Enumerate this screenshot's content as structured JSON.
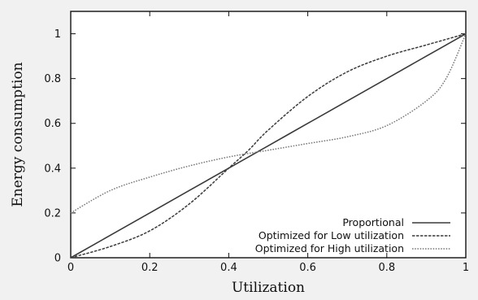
{
  "chart_data": {
    "type": "line",
    "xlabel": "Utilization",
    "ylabel": "Energy consumption",
    "xlim": [
      0,
      1
    ],
    "ylim": [
      0,
      1.1
    ],
    "x_ticks": [
      0,
      0.2,
      0.4,
      0.6,
      0.8,
      1
    ],
    "x_tick_labels": [
      "0",
      "0.2",
      "0.4",
      "0.6",
      "0.8",
      "1"
    ],
    "y_ticks": [
      0,
      0.2,
      0.4,
      0.6,
      0.8,
      1
    ],
    "y_tick_labels": [
      "0",
      "0.2",
      "0.4",
      "0.6",
      "0.8",
      "1"
    ],
    "grid": false,
    "legend_position": "bottom-right",
    "series": [
      {
        "name": "Proportional",
        "style": "solid",
        "color": "#3a3a3a",
        "x": [
          0,
          0.1,
          0.2,
          0.3,
          0.4,
          0.5,
          0.6,
          0.7,
          0.8,
          0.9,
          1
        ],
        "y": [
          0,
          0.1,
          0.2,
          0.3,
          0.4,
          0.5,
          0.6,
          0.7,
          0.8,
          0.9,
          1
        ]
      },
      {
        "name": "Optimized for Low utilization",
        "style": "dashed",
        "color": "#3a3a3a",
        "x": [
          0,
          0.1,
          0.2,
          0.3,
          0.4,
          0.45,
          0.5,
          0.6,
          0.7,
          0.8,
          0.9,
          1
        ],
        "y": [
          0,
          0.05,
          0.12,
          0.24,
          0.4,
          0.48,
          0.57,
          0.72,
          0.83,
          0.9,
          0.95,
          1
        ]
      },
      {
        "name": "Optimized for High utilization",
        "style": "dotted",
        "color": "#7a7a7a",
        "x": [
          0,
          0.1,
          0.2,
          0.3,
          0.4,
          0.5,
          0.6,
          0.7,
          0.8,
          0.9,
          0.95,
          1
        ],
        "y": [
          0.2,
          0.3,
          0.36,
          0.41,
          0.45,
          0.48,
          0.51,
          0.54,
          0.59,
          0.7,
          0.8,
          1
        ]
      }
    ]
  }
}
